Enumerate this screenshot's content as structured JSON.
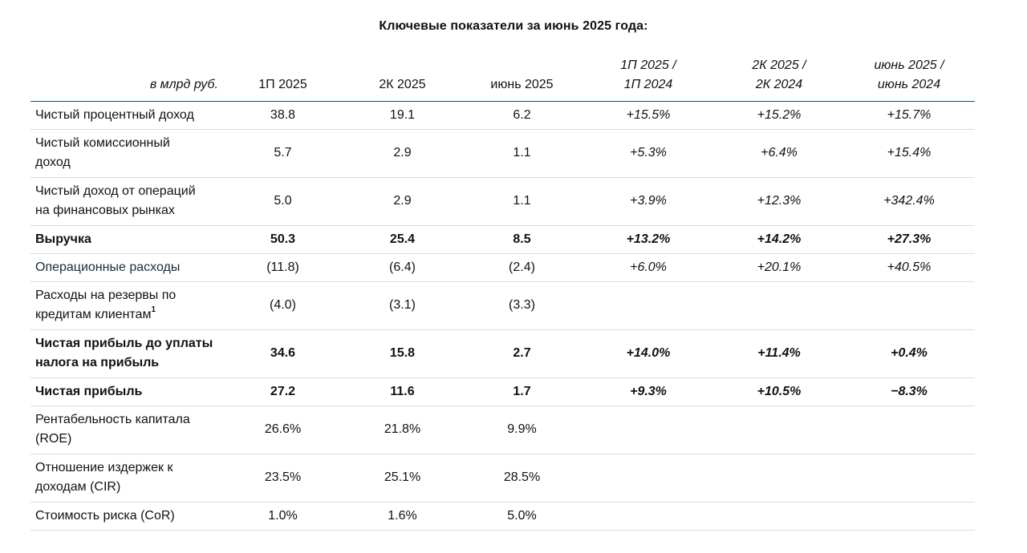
{
  "title": "Ключевые показатели за июнь 2025 года:",
  "header": {
    "unit": "в млрд руб.",
    "col1": "1П 2025",
    "col2": "2К 2025",
    "col3": "июнь 2025",
    "col4": [
      "1П 2025 /",
      "1П 2024"
    ],
    "col5": [
      "2К 2025 /",
      "2К 2024"
    ],
    "col6": [
      "июнь 2025 /",
      "июнь 2024"
    ]
  },
  "rows": [
    {
      "label": [
        "Чистый процентный доход"
      ],
      "v": [
        "38.8",
        "19.1",
        "6.2",
        "+15.5%",
        "+15.2%",
        "+15.7%"
      ]
    },
    {
      "label": [
        "Чистый комиссионный",
        "доход"
      ],
      "v": [
        "5.7",
        "2.9",
        "1.1",
        "+5.3%",
        "+6.4%",
        "+15.4%"
      ]
    },
    {
      "label": [
        "Чистый доход от операций",
        "на финансовых рынках"
      ],
      "v": [
        "5.0",
        "2.9",
        "1.1",
        "+3.9%",
        "+12.3%",
        "+342.4%"
      ]
    },
    {
      "label": [
        "Выручка"
      ],
      "v": [
        "50.3",
        "25.4",
        "8.5",
        "+13.2%",
        "+14.2%",
        "+27.3%"
      ]
    },
    {
      "label": [
        "Операционные расходы"
      ],
      "v": [
        "(11.8)",
        "(6.4)",
        "(2.4)",
        "+6.0%",
        "+20.1%",
        "+40.5%"
      ]
    },
    {
      "label": [
        "Расходы на резервы по",
        "кредитам клиентам"
      ],
      "footnote": "1",
      "v": [
        "(4.0)",
        "(3.1)",
        "(3.3)",
        "",
        "",
        ""
      ]
    },
    {
      "label": [
        "Чистая прибыль до уплаты",
        "налога на прибыль"
      ],
      "v": [
        "34.6",
        "15.8",
        "2.7",
        "+14.0%",
        "+11.4%",
        "+0.4%"
      ]
    },
    {
      "label": [
        "Чистая прибыль"
      ],
      "v": [
        "27.2",
        "11.6",
        "1.7",
        "+9.3%",
        "+10.5%",
        "−8.3%"
      ]
    },
    {
      "label": [
        "Рентабельность капитала",
        "(ROE)"
      ],
      "v": [
        "26.6%",
        "21.8%",
        "9.9%",
        "",
        "",
        ""
      ]
    },
    {
      "label": [
        "Отношение издержек к",
        "доходам (CIR)"
      ],
      "v": [
        "23.5%",
        "25.1%",
        "28.5%",
        "",
        "",
        ""
      ]
    },
    {
      "label": [
        "Стоимость риска (CoR)"
      ],
      "v": [
        "1.0%",
        "1.6%",
        "5.0%",
        "",
        "",
        ""
      ]
    }
  ]
}
